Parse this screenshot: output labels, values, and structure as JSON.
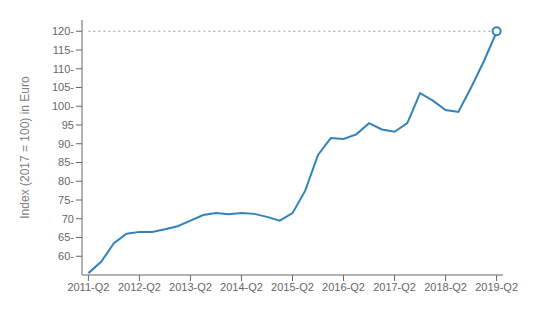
{
  "chart_data": {
    "type": "line",
    "ylabel": "Index (2017 = 100) in Euro",
    "x": [
      0,
      1,
      2,
      3,
      4,
      5,
      6,
      7,
      8,
      9,
      10,
      11,
      12,
      13,
      14,
      15,
      16,
      17,
      18,
      19,
      20,
      21,
      22,
      23,
      24,
      25,
      26,
      27,
      28,
      29,
      30,
      31,
      32
    ],
    "values": [
      55.5,
      58.5,
      63.5,
      66.0,
      66.5,
      66.5,
      67.2,
      68.0,
      69.5,
      71.0,
      71.5,
      71.2,
      71.5,
      71.3,
      70.5,
      69.5,
      71.5,
      77.5,
      87.0,
      91.5,
      91.3,
      92.5,
      95.5,
      93.8,
      93.2,
      95.5,
      103.5,
      101.5,
      99.0,
      98.5,
      105.0,
      112.0,
      119.8
    ],
    "xlim": [
      -0.5,
      32.5
    ],
    "xticks": [
      {
        "value": 0,
        "label": "2011-Q2"
      },
      {
        "value": 4,
        "label": "2012-Q2"
      },
      {
        "value": 8,
        "label": "2013-Q2"
      },
      {
        "value": 12,
        "label": "2014-Q2"
      },
      {
        "value": 16,
        "label": "2015-Q2"
      },
      {
        "value": 20,
        "label": "2016-Q2"
      },
      {
        "value": 24,
        "label": "2017-Q2"
      },
      {
        "value": 28,
        "label": "2018-Q2"
      },
      {
        "value": 32,
        "label": "2019-Q2"
      }
    ],
    "ylim": [
      55,
      123
    ],
    "yticks": [
      {
        "value": 60,
        "label": "60-"
      },
      {
        "value": 65,
        "label": "65-"
      },
      70,
      {
        "value": 75,
        "label": "75-"
      },
      {
        "value": 80,
        "label": "80-"
      },
      {
        "value": 85,
        "label": "85-"
      },
      {
        "value": 90,
        "label": "90-"
      },
      95,
      {
        "value": 100,
        "label": "100-"
      },
      {
        "value": 105,
        "label": "105-"
      },
      {
        "value": 110,
        "label": "110-"
      },
      {
        "value": 115,
        "label": "115-"
      },
      {
        "value": 120,
        "label": "120-"
      }
    ],
    "reference_lines": [
      {
        "y": 120,
        "x": [
          0,
          32
        ],
        "line_style": "dotted"
      },
      {
        "x": 32,
        "y": [
          119.8,
          120
        ],
        "line_style": "dotted"
      }
    ],
    "highlight_point": {
      "x": 32,
      "y": 120
    },
    "grid": false
  }
}
